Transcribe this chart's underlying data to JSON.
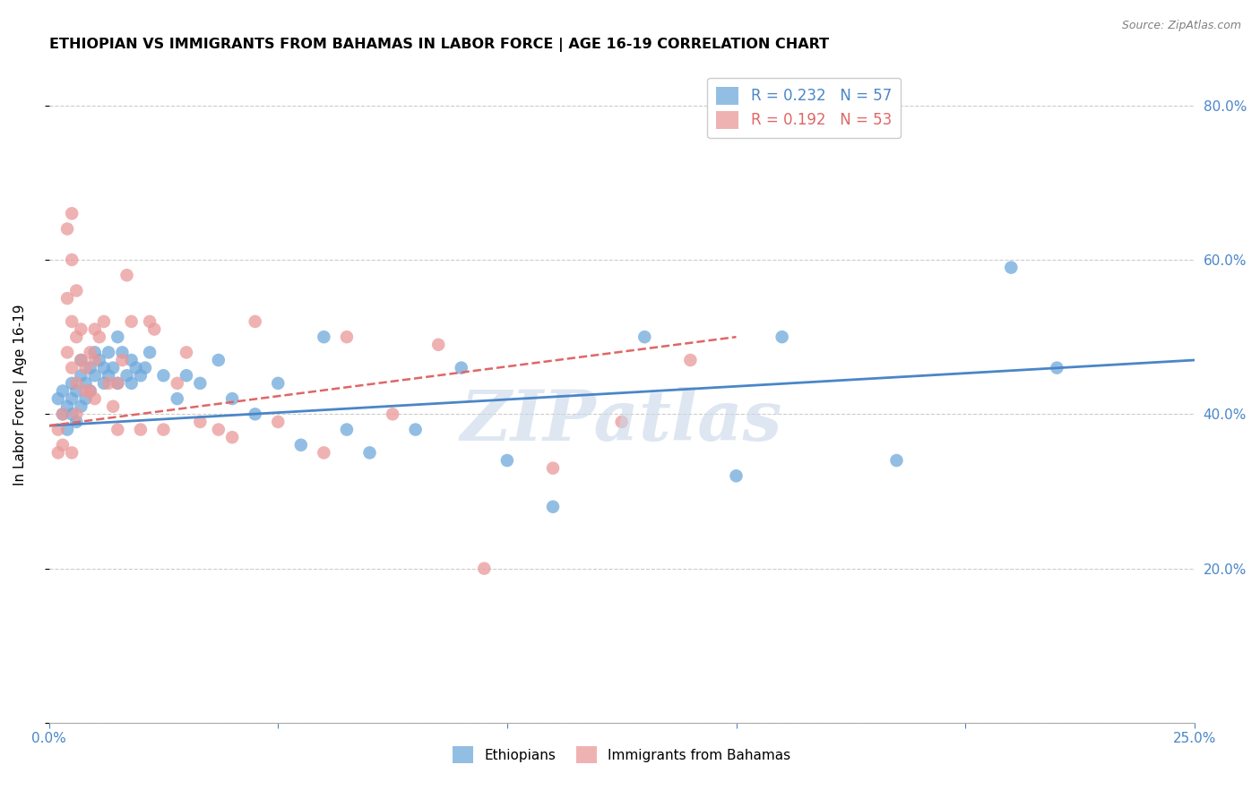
{
  "title": "ETHIOPIAN VS IMMIGRANTS FROM BAHAMAS IN LABOR FORCE | AGE 16-19 CORRELATION CHART",
  "source": "Source: ZipAtlas.com",
  "ylabel": "In Labor Force | Age 16-19",
  "x_min": 0.0,
  "x_max": 0.25,
  "y_min": 0.0,
  "y_max": 0.85,
  "ethiopians_R": 0.232,
  "ethiopians_N": 57,
  "bahamas_R": 0.192,
  "bahamas_N": 53,
  "ethiopians_color": "#6fa8dc",
  "bahamas_color": "#ea9999",
  "trend_ethiopians_color": "#4a86c8",
  "trend_bahamas_color": "#e06666",
  "legend_label_ethiopians": "Ethiopians",
  "legend_label_bahamas": "Immigrants from Bahamas",
  "watermark": "ZIPatlas",
  "ethiopians_x": [
    0.002,
    0.003,
    0.003,
    0.004,
    0.004,
    0.005,
    0.005,
    0.005,
    0.006,
    0.006,
    0.007,
    0.007,
    0.007,
    0.008,
    0.008,
    0.009,
    0.009,
    0.01,
    0.01,
    0.011,
    0.012,
    0.012,
    0.013,
    0.013,
    0.014,
    0.015,
    0.015,
    0.016,
    0.017,
    0.018,
    0.018,
    0.019,
    0.02,
    0.021,
    0.022,
    0.025,
    0.028,
    0.03,
    0.033,
    0.037,
    0.04,
    0.045,
    0.05,
    0.055,
    0.06,
    0.065,
    0.07,
    0.08,
    0.09,
    0.1,
    0.11,
    0.13,
    0.15,
    0.16,
    0.185,
    0.21,
    0.22
  ],
  "ethiopians_y": [
    0.42,
    0.4,
    0.43,
    0.41,
    0.38,
    0.4,
    0.42,
    0.44,
    0.39,
    0.43,
    0.47,
    0.45,
    0.41,
    0.44,
    0.42,
    0.46,
    0.43,
    0.45,
    0.48,
    0.47,
    0.46,
    0.44,
    0.48,
    0.45,
    0.46,
    0.5,
    0.44,
    0.48,
    0.45,
    0.47,
    0.44,
    0.46,
    0.45,
    0.46,
    0.48,
    0.45,
    0.42,
    0.45,
    0.44,
    0.47,
    0.42,
    0.4,
    0.44,
    0.36,
    0.5,
    0.38,
    0.35,
    0.38,
    0.46,
    0.34,
    0.28,
    0.5,
    0.32,
    0.5,
    0.34,
    0.59,
    0.46
  ],
  "bahamas_x": [
    0.002,
    0.002,
    0.003,
    0.003,
    0.004,
    0.004,
    0.004,
    0.005,
    0.005,
    0.005,
    0.005,
    0.005,
    0.006,
    0.006,
    0.006,
    0.006,
    0.007,
    0.007,
    0.008,
    0.008,
    0.009,
    0.009,
    0.01,
    0.01,
    0.01,
    0.011,
    0.012,
    0.013,
    0.014,
    0.015,
    0.015,
    0.016,
    0.017,
    0.018,
    0.02,
    0.022,
    0.023,
    0.025,
    0.028,
    0.03,
    0.033,
    0.037,
    0.04,
    0.045,
    0.05,
    0.06,
    0.065,
    0.075,
    0.085,
    0.095,
    0.11,
    0.125,
    0.14
  ],
  "bahamas_y": [
    0.38,
    0.35,
    0.36,
    0.4,
    0.64,
    0.55,
    0.48,
    0.66,
    0.6,
    0.52,
    0.46,
    0.35,
    0.56,
    0.5,
    0.44,
    0.4,
    0.51,
    0.47,
    0.46,
    0.43,
    0.48,
    0.43,
    0.51,
    0.47,
    0.42,
    0.5,
    0.52,
    0.44,
    0.41,
    0.44,
    0.38,
    0.47,
    0.58,
    0.52,
    0.38,
    0.52,
    0.51,
    0.38,
    0.44,
    0.48,
    0.39,
    0.38,
    0.37,
    0.52,
    0.39,
    0.35,
    0.5,
    0.4,
    0.49,
    0.2,
    0.33,
    0.39,
    0.47
  ],
  "background_color": "#ffffff",
  "grid_color": "#cccccc",
  "axis_color": "#4a86c8",
  "trend_eth_x0": 0.0,
  "trend_eth_x1": 0.25,
  "trend_eth_y0": 0.385,
  "trend_eth_y1": 0.47,
  "trend_bah_x0": 0.0,
  "trend_bah_x1": 0.15,
  "trend_bah_y0": 0.385,
  "trend_bah_y1": 0.5
}
